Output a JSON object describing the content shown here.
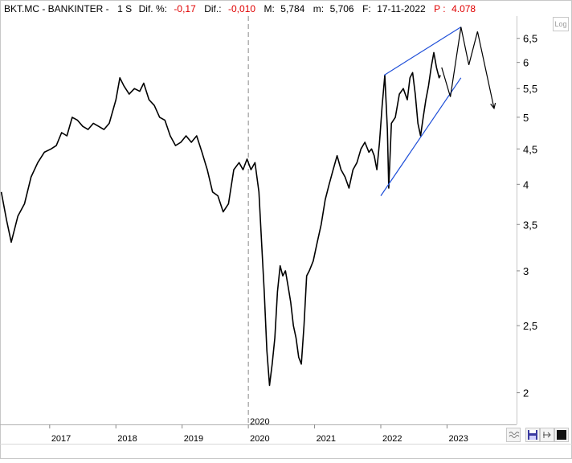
{
  "header": {
    "symbol": "BKT.MC - BANKINTER -",
    "timeframe": "1 S",
    "dif_pct_label": "Dif. %:",
    "dif_pct_value": "-0,17",
    "dif_label": "Dif.:",
    "dif_value": "-0,010",
    "max_label": "M:",
    "max_value": "5,784",
    "min_label": "m:",
    "min_value": "5,706",
    "date_label": "F:",
    "date_value": "17-11-2022",
    "p_label": "P :",
    "p_value": "4.078"
  },
  "controls": {
    "log_label": "Log",
    "scroll_icon": "wave-icon",
    "save_icon": "save-icon",
    "arrows_icon": "expand-arrows-icon",
    "color_icon": "color-swatch-icon"
  },
  "colors": {
    "price": "#000000",
    "channel": "#1f4fd8",
    "projection": "#000000",
    "red": "#e00000",
    "vline": "#888888"
  },
  "chart_data": {
    "type": "line",
    "title": "",
    "y_scale": "log",
    "ylim": [
      1.8,
      7.0
    ],
    "y_ticks": [
      2,
      2.5,
      3,
      3.5,
      4,
      4.5,
      5,
      5.5,
      6,
      6.5
    ],
    "y_tick_labels": [
      "2",
      "2,5",
      "3",
      "3,5",
      "4",
      "4,5",
      "5",
      "5,5",
      "6",
      "6,5"
    ],
    "x_ticks": [
      {
        "x": 2017.0,
        "label": "2017"
      },
      {
        "x": 2018.0,
        "label": "2018"
      },
      {
        "x": 2019.0,
        "label": "2019"
      },
      {
        "x": 2020.0,
        "label": "2020"
      },
      {
        "x": 2021.0,
        "label": "2021"
      },
      {
        "x": 2022.0,
        "label": "2022"
      },
      {
        "x": 2023.0,
        "label": "2023"
      }
    ],
    "xlim": [
      2016.25,
      2024.05
    ],
    "marker_line": {
      "x": 2020.0,
      "label": "2020"
    },
    "series": [
      {
        "values": [
          [
            2016.27,
            3.9
          ],
          [
            2016.35,
            3.55
          ],
          [
            2016.42,
            3.3
          ],
          [
            2016.52,
            3.6
          ],
          [
            2016.62,
            3.75
          ],
          [
            2016.72,
            4.1
          ],
          [
            2016.82,
            4.3
          ],
          [
            2016.92,
            4.45
          ],
          [
            2017.02,
            4.5
          ],
          [
            2017.1,
            4.55
          ],
          [
            2017.18,
            4.75
          ],
          [
            2017.26,
            4.7
          ],
          [
            2017.34,
            5.0
          ],
          [
            2017.42,
            4.95
          ],
          [
            2017.5,
            4.85
          ],
          [
            2017.58,
            4.8
          ],
          [
            2017.66,
            4.9
          ],
          [
            2017.74,
            4.85
          ],
          [
            2017.82,
            4.8
          ],
          [
            2017.9,
            4.9
          ],
          [
            2018.0,
            5.3
          ],
          [
            2018.06,
            5.7
          ],
          [
            2018.12,
            5.55
          ],
          [
            2018.2,
            5.4
          ],
          [
            2018.28,
            5.5
          ],
          [
            2018.36,
            5.45
          ],
          [
            2018.42,
            5.6
          ],
          [
            2018.5,
            5.3
          ],
          [
            2018.58,
            5.2
          ],
          [
            2018.66,
            5.0
          ],
          [
            2018.74,
            4.95
          ],
          [
            2018.82,
            4.7
          ],
          [
            2018.9,
            4.55
          ],
          [
            2018.98,
            4.6
          ],
          [
            2019.06,
            4.7
          ],
          [
            2019.14,
            4.6
          ],
          [
            2019.22,
            4.7
          ],
          [
            2019.3,
            4.45
          ],
          [
            2019.38,
            4.2
          ],
          [
            2019.46,
            3.9
          ],
          [
            2019.54,
            3.85
          ],
          [
            2019.62,
            3.65
          ],
          [
            2019.7,
            3.75
          ],
          [
            2019.78,
            4.2
          ],
          [
            2019.86,
            4.3
          ],
          [
            2019.92,
            4.2
          ],
          [
            2019.98,
            4.35
          ],
          [
            2020.04,
            4.2
          ],
          [
            2020.1,
            4.3
          ],
          [
            2020.16,
            3.9
          ],
          [
            2020.2,
            3.3
          ],
          [
            2020.24,
            2.8
          ],
          [
            2020.28,
            2.3
          ],
          [
            2020.32,
            2.05
          ],
          [
            2020.36,
            2.2
          ],
          [
            2020.4,
            2.4
          ],
          [
            2020.44,
            2.8
          ],
          [
            2020.48,
            3.05
          ],
          [
            2020.52,
            2.95
          ],
          [
            2020.56,
            3.0
          ],
          [
            2020.6,
            2.85
          ],
          [
            2020.64,
            2.7
          ],
          [
            2020.68,
            2.5
          ],
          [
            2020.72,
            2.4
          ],
          [
            2020.76,
            2.25
          ],
          [
            2020.8,
            2.2
          ],
          [
            2020.84,
            2.5
          ],
          [
            2020.88,
            2.95
          ],
          [
            2020.92,
            3.0
          ],
          [
            2020.98,
            3.1
          ],
          [
            2021.04,
            3.3
          ],
          [
            2021.1,
            3.5
          ],
          [
            2021.16,
            3.8
          ],
          [
            2021.22,
            4.0
          ],
          [
            2021.28,
            4.2
          ],
          [
            2021.34,
            4.4
          ],
          [
            2021.4,
            4.2
          ],
          [
            2021.46,
            4.1
          ],
          [
            2021.52,
            3.95
          ],
          [
            2021.58,
            4.2
          ],
          [
            2021.64,
            4.3
          ],
          [
            2021.7,
            4.5
          ],
          [
            2021.76,
            4.6
          ],
          [
            2021.82,
            4.45
          ],
          [
            2021.86,
            4.5
          ],
          [
            2021.9,
            4.4
          ],
          [
            2021.94,
            4.2
          ],
          [
            2021.98,
            4.6
          ],
          [
            2022.02,
            5.2
          ],
          [
            2022.06,
            5.75
          ],
          [
            2022.1,
            4.8
          ],
          [
            2022.12,
            3.95
          ],
          [
            2022.16,
            4.9
          ],
          [
            2022.22,
            5.0
          ],
          [
            2022.28,
            5.4
          ],
          [
            2022.34,
            5.5
          ],
          [
            2022.4,
            5.3
          ],
          [
            2022.44,
            5.7
          ],
          [
            2022.48,
            5.8
          ],
          [
            2022.52,
            5.4
          ],
          [
            2022.56,
            4.9
          ],
          [
            2022.6,
            4.7
          ],
          [
            2022.64,
            5.0
          ],
          [
            2022.68,
            5.3
          ],
          [
            2022.72,
            5.55
          ],
          [
            2022.76,
            5.9
          ],
          [
            2022.8,
            6.2
          ],
          [
            2022.84,
            5.9
          ],
          [
            2022.88,
            5.7
          ],
          [
            2022.9,
            5.75
          ]
        ]
      }
    ],
    "channel_upper": [
      [
        2022.05,
        5.75
      ],
      [
        2023.21,
        6.75
      ]
    ],
    "channel_lower": [
      [
        2022.0,
        3.85
      ],
      [
        2023.21,
        5.7
      ]
    ],
    "projection": [
      [
        2022.92,
        5.9
      ],
      [
        2023.05,
        5.35
      ],
      [
        2023.21,
        6.75
      ],
      [
        2023.33,
        5.95
      ],
      [
        2023.46,
        6.65
      ],
      [
        2023.71,
        5.15
      ]
    ]
  }
}
